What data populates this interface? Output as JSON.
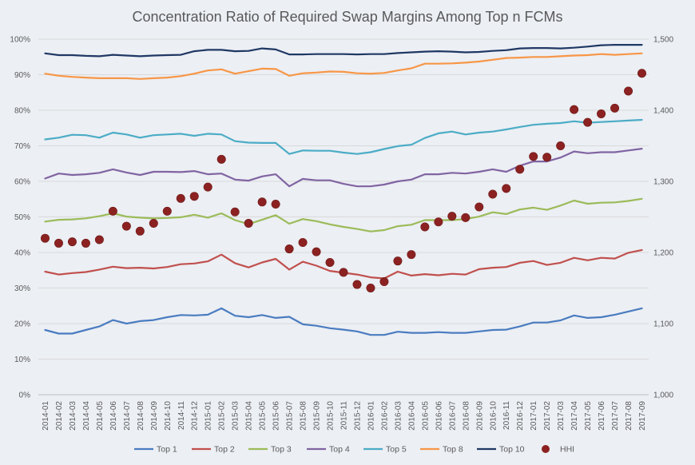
{
  "chart_data": {
    "type": "line",
    "title": "Concentration Ratio of Required Swap Margins Among Top n FCMs",
    "categories": [
      "2014-01",
      "2014-02",
      "2014-03",
      "2014-04",
      "2014-05",
      "2014-06",
      "2014-07",
      "2014-08",
      "2014-09",
      "2014-10",
      "2014-11",
      "2014-12",
      "2015-01",
      "2015-02",
      "2015-03",
      "2015-04",
      "2015-05",
      "2015-06",
      "2015-07",
      "2015-08",
      "2015-09",
      "2015-10",
      "2015-11",
      "2015-12",
      "2016-01",
      "2016-02",
      "2016-03",
      "2016-04",
      "2016-05",
      "2016-06",
      "2016-07",
      "2016-08",
      "2016-09",
      "2016-10",
      "2016-11",
      "2016-12",
      "2017-01",
      "2017-02",
      "2017-03",
      "2017-04",
      "2017-05",
      "2017-06",
      "2017-07",
      "2017-08",
      "2017-09"
    ],
    "y_left": {
      "ticks": [
        "0%",
        "10%",
        "20%",
        "30%",
        "40%",
        "50%",
        "60%",
        "70%",
        "80%",
        "90%",
        "100%"
      ],
      "min": 0,
      "max": 100
    },
    "y_right": {
      "ticks": [
        "1,000",
        "1,100",
        "1,200",
        "1,300",
        "1,400",
        "1,500"
      ],
      "min": 1000,
      "max": 1500
    },
    "grid": true,
    "legend_position": "bottom",
    "series": [
      {
        "name": "Top 1",
        "color": "#4a7cc0",
        "axis": "left",
        "values": [
          18.2,
          17.2,
          17.2,
          18.2,
          19.2,
          21.0,
          20.0,
          20.7,
          21.0,
          21.8,
          22.4,
          22.3,
          22.5,
          24.3,
          22.2,
          21.8,
          22.4,
          21.6,
          21.9,
          19.8,
          19.4,
          18.7,
          18.3,
          17.8,
          16.8,
          16.8,
          17.7,
          17.4,
          17.4,
          17.6,
          17.4,
          17.4,
          17.8,
          18.2,
          18.3,
          19.2,
          20.3,
          20.3,
          20.9,
          22.3,
          21.6,
          21.8,
          22.5,
          23.4,
          24.3
        ]
      },
      {
        "name": "Top 2",
        "color": "#c0504d",
        "axis": "left",
        "values": [
          34.6,
          33.8,
          34.2,
          34.5,
          35.2,
          36.0,
          35.6,
          35.7,
          35.5,
          35.9,
          36.7,
          36.9,
          37.5,
          39.4,
          37.0,
          35.8,
          37.2,
          38.2,
          35.2,
          37.4,
          36.3,
          34.8,
          34.3,
          33.8,
          33.0,
          32.7,
          34.6,
          33.5,
          33.9,
          33.6,
          34.0,
          33.8,
          35.3,
          35.7,
          35.9,
          37.1,
          37.6,
          36.5,
          37.1,
          38.5,
          37.8,
          38.5,
          38.3,
          39.9,
          40.7
        ]
      },
      {
        "name": "Top 3",
        "color": "#9bbb59",
        "axis": "left",
        "values": [
          48.7,
          49.2,
          49.3,
          49.6,
          50.2,
          51.0,
          50.1,
          49.8,
          49.6,
          49.7,
          49.9,
          50.6,
          49.8,
          51.0,
          49.1,
          48.0,
          49.2,
          50.5,
          48.1,
          49.4,
          48.8,
          47.9,
          47.2,
          46.6,
          45.9,
          46.3,
          47.4,
          47.8,
          49.1,
          49.1,
          49.1,
          49.4,
          50.1,
          51.3,
          50.8,
          52.1,
          52.6,
          52.0,
          53.2,
          54.6,
          53.7,
          54.0,
          54.1,
          54.5,
          55.1
        ]
      },
      {
        "name": "Top 4",
        "color": "#8064a2",
        "axis": "left",
        "values": [
          60.8,
          62.2,
          61.8,
          62.0,
          62.4,
          63.4,
          62.5,
          61.8,
          62.7,
          62.7,
          62.6,
          62.9,
          62.0,
          62.2,
          60.5,
          60.2,
          61.4,
          62.0,
          58.6,
          60.7,
          60.3,
          60.3,
          59.3,
          58.6,
          58.6,
          59.1,
          60.0,
          60.5,
          62.0,
          62.0,
          62.4,
          62.2,
          62.7,
          63.4,
          62.7,
          64.4,
          65.6,
          65.6,
          66.7,
          68.4,
          67.9,
          68.2,
          68.2,
          68.7,
          69.2
        ]
      },
      {
        "name": "Top 5",
        "color": "#4bacc6",
        "axis": "left",
        "values": [
          71.8,
          72.3,
          73.1,
          73.0,
          72.3,
          73.7,
          73.2,
          72.3,
          73.0,
          73.2,
          73.4,
          72.8,
          73.4,
          73.2,
          71.3,
          70.9,
          70.8,
          70.8,
          67.7,
          68.7,
          68.6,
          68.6,
          68.1,
          67.7,
          68.2,
          69.1,
          69.9,
          70.3,
          72.2,
          73.5,
          74.0,
          73.2,
          73.7,
          74.0,
          74.6,
          75.3,
          75.9,
          76.2,
          76.4,
          76.9,
          76.5,
          76.7,
          76.9,
          77.1,
          77.3
        ]
      },
      {
        "name": "Top 8",
        "color": "#f79646",
        "axis": "left",
        "values": [
          90.3,
          89.7,
          89.4,
          89.2,
          89.0,
          89.0,
          89.0,
          88.8,
          89.0,
          89.2,
          89.6,
          90.3,
          91.2,
          91.5,
          90.3,
          91.0,
          91.7,
          91.6,
          89.7,
          90.4,
          90.6,
          90.9,
          90.8,
          90.4,
          90.3,
          90.5,
          91.2,
          91.8,
          93.1,
          93.1,
          93.2,
          93.4,
          93.7,
          94.2,
          94.7,
          94.8,
          95.0,
          95.0,
          95.2,
          95.4,
          95.5,
          95.8,
          95.6,
          95.8,
          96.0
        ]
      },
      {
        "name": "Top 10",
        "color": "#1f3864",
        "axis": "left",
        "values": [
          96.0,
          95.5,
          95.5,
          95.3,
          95.2,
          95.6,
          95.4,
          95.2,
          95.4,
          95.5,
          95.6,
          96.6,
          97.0,
          97.0,
          96.6,
          96.7,
          97.4,
          97.1,
          95.7,
          95.7,
          95.8,
          95.8,
          95.8,
          95.7,
          95.8,
          95.8,
          96.1,
          96.3,
          96.5,
          96.6,
          96.5,
          96.3,
          96.4,
          96.7,
          96.9,
          97.4,
          97.5,
          97.5,
          97.4,
          97.6,
          97.9,
          98.3,
          98.4,
          98.4,
          98.4
        ]
      },
      {
        "name": "HHI",
        "color": "#8b2221",
        "axis": "right",
        "type": "scatter",
        "values": [
          1220,
          1213,
          1215,
          1213,
          1218,
          1258,
          1237,
          1230,
          1241,
          1258,
          1276,
          1279,
          1292,
          1331,
          1257,
          1241,
          1271,
          1268,
          1205,
          1214,
          1201,
          1186,
          1172,
          1155,
          1150,
          1159,
          1188,
          1197,
          1236,
          1243,
          1251,
          1249,
          1264,
          1282,
          1290,
          1317,
          1335,
          1334,
          1350,
          1401,
          1383,
          1395,
          1403,
          1427,
          1452
        ]
      }
    ]
  }
}
